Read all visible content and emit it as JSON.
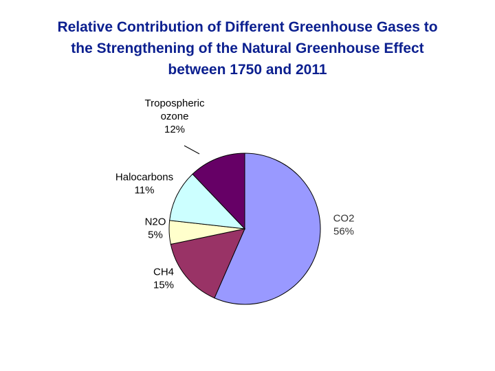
{
  "title_lines": [
    "Relative Contribution of Different Greenhouse Gases to",
    "the Strengthening of the Natural Greenhouse Effect",
    "between 1750 and 2011"
  ],
  "chart_data": {
    "type": "pie",
    "title": "Relative Contribution of Different Greenhouse Gases to the Strengthening of the Natural Greenhouse Effect between 1750 and 2011",
    "slices": [
      {
        "label": "CO2",
        "label_lines": [
          "CO2",
          "56%"
        ],
        "value": 56,
        "color": "#9999ff"
      },
      {
        "label": "CH4",
        "label_lines": [
          "CH4",
          "15%"
        ],
        "value": 15,
        "color": "#993366"
      },
      {
        "label": "N2O",
        "label_lines": [
          "N2O",
          "5%"
        ],
        "value": 5,
        "color": "#ffffcc"
      },
      {
        "label": "Halocarbons",
        "label_lines": [
          "Halocarbons",
          "11%"
        ],
        "value": 11,
        "color": "#ccffff"
      },
      {
        "label": "Tropospheric ozone",
        "label_lines": [
          "Tropospheric",
          "ozone",
          "12%"
        ],
        "value": 12,
        "color": "#660066"
      }
    ],
    "start": "12 o'clock",
    "direction": "clockwise"
  }
}
